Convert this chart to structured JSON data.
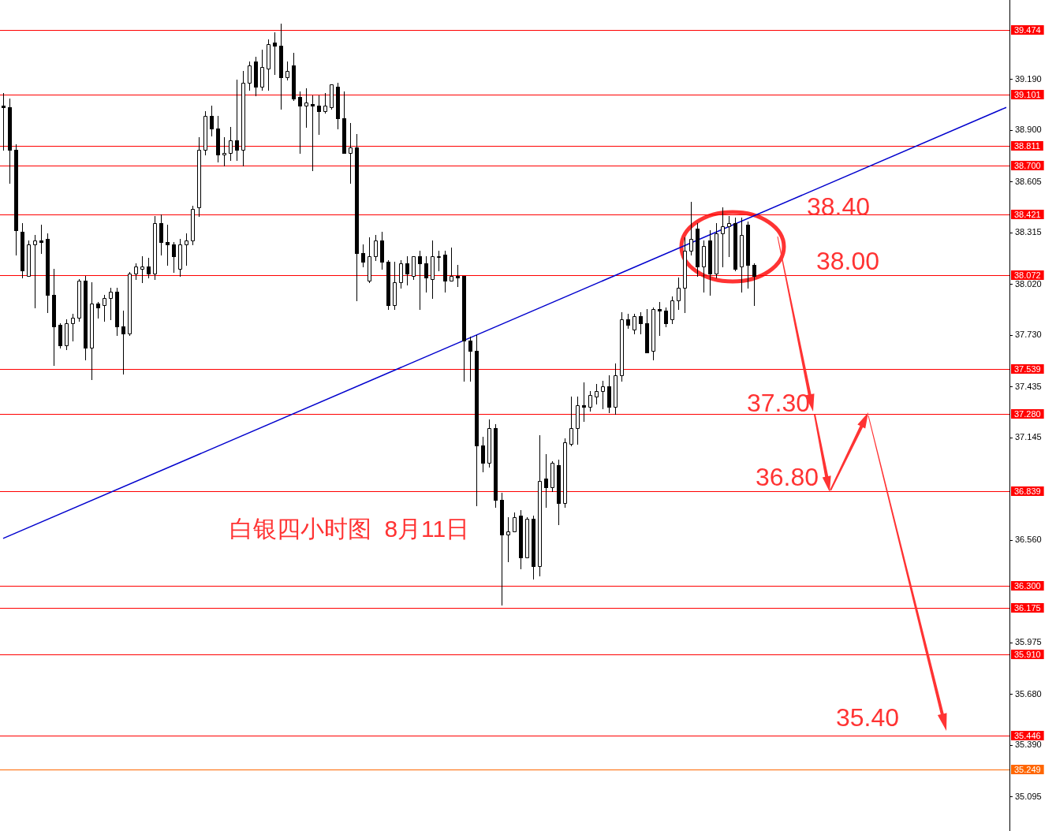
{
  "chart_data": {
    "type": "candlestick",
    "title": "白银四小时图  8月11日",
    "categories": [
      null,
      null,
      null,
      null,
      null,
      null,
      null,
      null,
      null,
      null,
      null,
      null,
      null,
      null,
      null,
      null,
      null,
      null,
      null,
      null,
      null,
      null,
      null,
      null,
      null,
      null,
      null,
      null,
      null,
      null,
      null,
      null,
      null,
      null,
      null,
      null,
      null,
      null,
      null,
      null,
      null,
      null,
      null,
      null,
      null,
      null,
      null,
      null,
      null,
      null,
      null,
      null,
      null,
      null,
      null,
      null,
      null,
      null,
      null,
      null,
      null,
      null,
      null,
      null,
      null,
      null,
      null,
      null,
      null,
      null,
      null,
      null,
      null,
      null,
      null,
      null,
      null,
      null,
      null,
      null,
      null,
      null,
      null,
      null,
      null,
      null,
      null,
      null,
      null,
      null,
      null,
      null,
      null,
      null,
      null,
      null,
      null,
      null,
      null,
      null,
      null,
      null,
      null,
      null,
      null,
      null,
      null,
      null,
      null,
      null,
      null,
      null,
      null,
      null,
      null,
      null,
      null,
      null,
      null,
      null,
      null,
      null,
      null,
      null,
      null,
      null,
      null,
      null,
      null,
      null,
      null,
      null,
      null,
      null,
      null,
      null,
      null,
      null,
      null,
      null,
      null,
      null,
      null,
      null,
      null,
      null,
      null,
      null,
      null,
      null,
      null,
      null,
      null,
      null,
      null,
      null,
      null,
      null,
      null,
      null
    ],
    "ohlc": [
      [
        39.04,
        39.11,
        38.79,
        39.03
      ],
      [
        39.03,
        39.08,
        38.6,
        38.79
      ],
      [
        38.79,
        38.82,
        38.19,
        38.33
      ],
      [
        38.32,
        38.37,
        38.06,
        38.1
      ],
      [
        38.07,
        38.27,
        38.07,
        38.25
      ],
      [
        38.25,
        38.3,
        37.89,
        38.27
      ],
      [
        38.27,
        38.36,
        38.2,
        38.26
      ],
      [
        38.28,
        38.31,
        37.86,
        37.96
      ],
      [
        37.96,
        38.11,
        37.56,
        37.78
      ],
      [
        37.79,
        37.8,
        37.66,
        37.67
      ],
      [
        37.67,
        37.82,
        37.65,
        37.8
      ],
      [
        37.8,
        37.85,
        37.7,
        37.83
      ],
      [
        37.83,
        38.05,
        37.81,
        38.04
      ],
      [
        38.04,
        38.07,
        37.59,
        37.66
      ],
      [
        37.66,
        38.03,
        37.48,
        37.91
      ],
      [
        37.91,
        37.92,
        37.83,
        37.89
      ],
      [
        37.9,
        37.96,
        37.81,
        37.94
      ],
      [
        37.94,
        38.0,
        37.82,
        37.98
      ],
      [
        37.98,
        38.0,
        37.73,
        37.78
      ],
      [
        37.78,
        37.87,
        37.51,
        37.74
      ],
      [
        37.74,
        38.09,
        37.73,
        38.08
      ],
      [
        38.08,
        38.14,
        38.05,
        38.12
      ],
      [
        38.11,
        38.18,
        38.03,
        38.12
      ],
      [
        38.12,
        38.17,
        38.06,
        38.08
      ],
      [
        38.08,
        38.41,
        38.05,
        38.37
      ],
      [
        38.37,
        38.42,
        38.19,
        38.26
      ],
      [
        38.26,
        38.36,
        38.13,
        38.25
      ],
      [
        38.25,
        38.26,
        38.09,
        38.18
      ],
      [
        38.11,
        38.28,
        38.07,
        38.25
      ],
      [
        38.25,
        38.31,
        38.13,
        38.27
      ],
      [
        38.27,
        38.47,
        38.25,
        38.45
      ],
      [
        38.46,
        38.86,
        38.41,
        38.79
      ],
      [
        38.79,
        39.01,
        38.76,
        38.98
      ],
      [
        38.98,
        39.04,
        38.87,
        38.91
      ],
      [
        38.91,
        38.98,
        38.72,
        38.76
      ],
      [
        38.76,
        38.86,
        38.7,
        38.77
      ],
      [
        38.77,
        38.92,
        38.73,
        38.84
      ],
      [
        38.84,
        39.19,
        38.73,
        38.79
      ],
      [
        38.79,
        39.24,
        38.7,
        39.17
      ],
      [
        39.17,
        39.29,
        39.13,
        39.27
      ],
      [
        39.29,
        39.32,
        39.1,
        39.15
      ],
      [
        39.15,
        39.36,
        39.13,
        39.26
      ],
      [
        39.25,
        39.42,
        39.13,
        39.39
      ],
      [
        39.4,
        39.46,
        39.22,
        39.38
      ],
      [
        39.38,
        39.51,
        39.02,
        39.2
      ],
      [
        39.2,
        39.29,
        39.19,
        39.24
      ],
      [
        39.27,
        39.34,
        39.07,
        39.08
      ],
      [
        39.09,
        39.12,
        38.77,
        39.04
      ],
      [
        39.04,
        39.14,
        38.92,
        39.06
      ],
      [
        39.05,
        39.1,
        38.67,
        39.04
      ],
      [
        39.04,
        39.1,
        38.88,
        39.01
      ],
      [
        39.01,
        39.11,
        39.0,
        39.04
      ],
      [
        39.03,
        39.16,
        39.02,
        39.16
      ],
      [
        39.15,
        39.17,
        38.91,
        38.97
      ],
      [
        38.97,
        39.12,
        38.77,
        38.77
      ],
      [
        38.77,
        38.94,
        38.6,
        38.8
      ],
      [
        38.8,
        38.88,
        37.93,
        38.2
      ],
      [
        38.2,
        38.25,
        38.12,
        38.15
      ],
      [
        38.04,
        38.29,
        38.03,
        38.18
      ],
      [
        38.18,
        38.3,
        38.16,
        38.27
      ],
      [
        38.27,
        38.32,
        38.11,
        38.15
      ],
      [
        38.15,
        38.16,
        37.88,
        37.9
      ],
      [
        37.9,
        38.15,
        37.88,
        38.03
      ],
      [
        38.03,
        38.16,
        38.0,
        38.14
      ],
      [
        38.14,
        38.18,
        38.02,
        38.08
      ],
      [
        38.07,
        38.18,
        38.05,
        38.18
      ],
      [
        38.18,
        38.21,
        37.88,
        38.14
      ],
      [
        38.14,
        38.18,
        37.98,
        38.06
      ],
      [
        38.05,
        38.27,
        37.94,
        38.18
      ],
      [
        38.18,
        38.21,
        38.1,
        38.18
      ],
      [
        38.19,
        38.21,
        37.98,
        38.04
      ],
      [
        38.04,
        38.23,
        38.04,
        38.07
      ],
      [
        38.07,
        38.13,
        38.01,
        38.06
      ],
      [
        38.07,
        38.07,
        37.47,
        37.7
      ],
      [
        37.7,
        37.72,
        37.47,
        37.64
      ],
      [
        37.64,
        37.73,
        36.76,
        37.1
      ],
      [
        37.1,
        37.15,
        36.95,
        37.0
      ],
      [
        37.0,
        37.25,
        36.98,
        37.2
      ],
      [
        37.2,
        37.22,
        36.75,
        36.79
      ],
      [
        36.79,
        36.83,
        36.19,
        36.59
      ],
      [
        36.59,
        36.69,
        36.44,
        36.61
      ],
      [
        36.61,
        36.72,
        36.61,
        36.69
      ],
      [
        36.7,
        36.73,
        36.4,
        36.46
      ],
      [
        36.46,
        36.69,
        36.46,
        36.68
      ],
      [
        36.68,
        36.7,
        36.34,
        36.41
      ],
      [
        36.41,
        37.16,
        36.36,
        36.9
      ],
      [
        36.91,
        37.05,
        36.75,
        36.86
      ],
      [
        36.86,
        37.01,
        36.84,
        37.0
      ],
      [
        36.99,
        37.02,
        36.65,
        36.77
      ],
      [
        36.77,
        37.14,
        36.75,
        37.12
      ],
      [
        37.11,
        37.38,
        37.1,
        37.2
      ],
      [
        37.2,
        37.38,
        37.11,
        37.33
      ],
      [
        37.33,
        37.46,
        37.24,
        37.32
      ],
      [
        37.32,
        37.41,
        37.3,
        37.39
      ],
      [
        37.38,
        37.45,
        37.34,
        37.41
      ],
      [
        37.41,
        37.47,
        37.31,
        37.44
      ],
      [
        37.44,
        37.5,
        37.29,
        37.32
      ],
      [
        37.32,
        37.57,
        37.28,
        37.5
      ],
      [
        37.5,
        37.86,
        37.47,
        37.82
      ],
      [
        37.82,
        37.85,
        37.77,
        37.79
      ],
      [
        37.76,
        37.85,
        37.74,
        37.84
      ],
      [
        37.84,
        37.86,
        37.74,
        37.8
      ],
      [
        37.8,
        37.88,
        37.63,
        37.63
      ],
      [
        37.64,
        37.89,
        37.59,
        37.88
      ],
      [
        37.88,
        37.92,
        37.73,
        37.87
      ],
      [
        37.87,
        37.89,
        37.78,
        37.8
      ],
      [
        37.82,
        37.95,
        37.8,
        37.93
      ],
      [
        37.93,
        38.06,
        37.88,
        38.0
      ],
      [
        38.0,
        38.29,
        37.86,
        38.21
      ],
      [
        38.21,
        38.49,
        38.19,
        38.28
      ],
      [
        38.34,
        38.37,
        38.07,
        38.12
      ],
      [
        38.12,
        38.27,
        37.98,
        38.24
      ],
      [
        38.27,
        38.33,
        37.96,
        38.08
      ],
      [
        38.08,
        38.37,
        38.06,
        38.31
      ],
      [
        38.31,
        38.46,
        38.12,
        38.35
      ],
      [
        38.35,
        38.41,
        38.18,
        38.37
      ],
      [
        38.37,
        38.4,
        38.1,
        38.11
      ],
      [
        38.12,
        38.4,
        37.98,
        38.3
      ],
      [
        38.36,
        38.38,
        38.0,
        38.13
      ],
      [
        38.13,
        38.14,
        37.9,
        38.07
      ],
      null,
      null,
      null,
      null,
      null,
      null,
      null,
      null,
      null,
      null,
      null,
      null,
      null,
      null,
      null,
      null,
      null,
      null,
      null,
      null,
      null,
      null,
      null,
      null,
      null,
      null,
      null,
      null,
      null,
      null,
      null,
      null,
      null,
      null,
      null,
      null,
      null,
      null,
      null,
      null
    ],
    "colors": [
      "#000000",
      "#000000",
      "#000000",
      "#000000",
      "#ffffff",
      "#ffffff",
      "#000000",
      "#000000",
      "#000000",
      "#000000",
      "#ffffff",
      "#ffffff",
      "#ffffff",
      "#000000",
      "#ffffff",
      "#000000",
      "#ffffff",
      "#ffffff",
      "#000000",
      "#000000",
      "#ffffff",
      "#ffffff",
      "#ffffff",
      "#000000",
      "#ffffff",
      "#000000",
      "#000000",
      "#000000",
      "#ffffff",
      "#ffffff",
      "#ffffff",
      "#ffffff",
      "#ffffff",
      "#000000",
      "#000000",
      "#ffffff",
      "#ffffff",
      "#000000",
      "#ffffff",
      "#ffffff",
      "#000000",
      "#ffffff",
      "#ffffff",
      "#000000",
      "#000000",
      "#ffffff",
      "#000000",
      "#000000",
      "#ffffff",
      "#000000",
      "#000000",
      "#ffffff",
      "#ffffff",
      "#000000",
      "#000000",
      "#ffffff",
      "#000000",
      "#000000",
      "#ffffff",
      "#ffffff",
      "#000000",
      "#000000",
      "#ffffff",
      "#ffffff",
      "#000000",
      "#ffffff",
      "#000000",
      "#000000",
      "#ffffff",
      "#ffffff",
      "#000000",
      "#ffffff",
      "#000000",
      "#000000",
      "#000000",
      "#000000",
      "#000000",
      "#ffffff",
      "#000000",
      "#000000",
      "#ffffff",
      "#ffffff",
      "#000000",
      "#ffffff",
      "#000000",
      "#ffffff",
      "#000000",
      "#ffffff",
      "#000000",
      "#ffffff",
      "#ffffff",
      "#ffffff",
      "#000000",
      "#ffffff",
      "#ffffff",
      "#ffffff",
      "#000000",
      "#ffffff",
      "#ffffff",
      "#000000",
      "#ffffff",
      "#000000",
      "#000000",
      "#ffffff",
      "#000000",
      "#000000",
      "#ffffff",
      "#ffffff",
      "#ffffff",
      "#ffffff",
      "#000000",
      "#ffffff",
      "#000000",
      "#ffffff",
      "#ffffff",
      "#ffffff",
      "#000000",
      "#ffffff",
      "#000000",
      "#000000",
      null,
      null,
      null,
      null,
      null,
      null,
      null,
      null,
      null,
      null,
      null,
      null,
      null,
      null,
      null,
      null,
      null,
      null,
      null,
      null,
      null,
      null,
      null,
      null,
      null,
      null,
      null,
      null,
      null,
      null,
      null,
      null,
      null,
      null,
      null,
      null,
      null,
      null,
      null,
      null
    ],
    "series": [
      {
        "type": "line",
        "color": "#0000cd",
        "values": [
          36.57,
          null,
          null,
          null,
          null,
          null,
          null,
          null,
          null,
          null,
          null,
          null,
          null,
          null,
          null,
          null,
          null,
          null,
          null,
          null,
          null,
          null,
          null,
          null,
          null,
          null,
          null,
          null,
          null,
          null,
          null,
          null,
          null,
          null,
          null,
          null,
          null,
          null,
          null,
          null,
          null,
          null,
          null,
          null,
          null,
          null,
          null,
          null,
          null,
          null,
          null,
          null,
          null,
          null,
          null,
          null,
          null,
          null,
          null,
          null,
          null,
          null,
          null,
          null,
          null,
          null,
          null,
          null,
          null,
          null,
          null,
          null,
          null,
          null,
          null,
          null,
          null,
          null,
          null,
          null,
          null,
          null,
          null,
          null,
          null,
          null,
          null,
          null,
          null,
          null,
          null,
          null,
          null,
          null,
          null,
          null,
          null,
          null,
          null,
          null,
          null,
          null,
          null,
          null,
          null,
          null,
          null,
          null,
          null,
          null,
          null,
          null,
          null,
          null,
          null,
          null,
          null,
          null,
          null,
          null,
          null,
          null,
          null,
          null,
          null,
          null,
          null,
          null,
          null,
          null,
          null,
          null,
          null,
          null,
          null,
          null,
          null,
          null,
          null,
          null,
          null,
          null,
          null,
          null,
          null,
          null,
          null,
          null,
          null,
          null,
          null,
          null,
          null,
          null,
          null,
          null,
          null,
          null,
          null,
          39.03
        ]
      }
    ],
    "ylim": [
      34.9,
      39.643
    ],
    "yticks": [
      {
        "value": 39.19,
        "label": "39.190"
      },
      {
        "value": 38.9,
        "label": "38.900"
      },
      38.605,
      38.315,
      {
        "value": 38.02,
        "label": "38.020"
      },
      {
        "value": 37.73,
        "label": "37.730"
      },
      37.435,
      37.145,
      {
        "value": 36.56,
        "label": "36.560"
      },
      35.975,
      {
        "value": 35.68,
        "label": "35.680"
      },
      {
        "value": 35.39,
        "label": "35.390"
      },
      35.095
    ],
    "ref_lines": [
      {
        "axis": "y",
        "value": 39.474,
        "label": "39.474",
        "color": "#ff0000"
      },
      {
        "axis": "y",
        "value": 39.101,
        "label": "39.101",
        "color": "#ff0000"
      },
      {
        "axis": "y",
        "value": 38.811,
        "label": "38.811",
        "color": "#ff0000"
      },
      {
        "axis": "y",
        "value": 38.7,
        "label": "38.700",
        "color": "#ff0000"
      },
      {
        "axis": "y",
        "value": 38.421,
        "label": "38.421",
        "color": "#ff0000"
      },
      {
        "axis": "y",
        "value": 38.072,
        "label": "38.072",
        "color": "#ff0000"
      },
      {
        "axis": "y",
        "value": 37.539,
        "label": "37.539",
        "color": "#ff0000"
      },
      {
        "axis": "y",
        "value": 37.28,
        "label": "37.280",
        "color": "#ff0000"
      },
      {
        "axis": "y",
        "value": 36.839,
        "label": "36.839",
        "color": "#ff0000"
      },
      {
        "axis": "y",
        "value": 36.3,
        "label": "36.300",
        "color": "#ff0000"
      },
      {
        "axis": "y",
        "value": 36.175,
        "label": "36.175",
        "color": "#ff0000"
      },
      {
        "axis": "y",
        "value": 35.91,
        "label": "35.910",
        "color": "#ff0000"
      },
      {
        "axis": "y",
        "value": 35.446,
        "label": "35.446",
        "color": "#ff0000"
      },
      {
        "axis": "y",
        "value": 35.249,
        "label": "35.249",
        "color": "#ff6600"
      }
    ],
    "annotations": [
      "38.40",
      "38.00",
      "37.30",
      "36.80",
      "35.40"
    ],
    "tick_labels": "y"
  }
}
